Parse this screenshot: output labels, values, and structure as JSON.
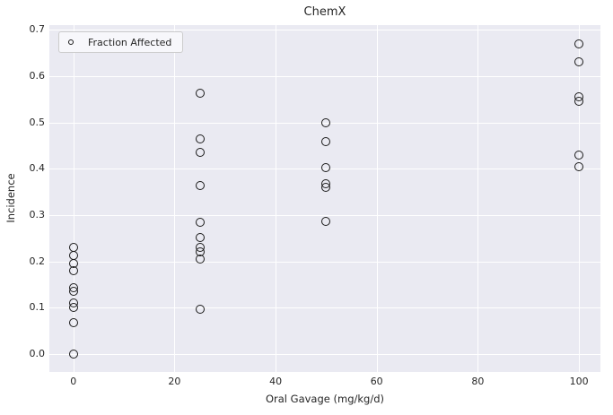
{
  "style": {
    "figure_bg": "#ffffff",
    "plot_bg": "#eaeaf2",
    "grid_color": "#ffffff",
    "text_color": "#262626",
    "marker_edge_color": "#1a1a1a"
  },
  "legend": {
    "label": "Fraction Affected",
    "marker_icon": "open-circle"
  },
  "chart_data": {
    "type": "scatter",
    "title": "ChemX",
    "xlabel": "Oral Gavage (mg/kg/d)",
    "ylabel": "Incidence",
    "legend_entries": [
      "Fraction Affected"
    ],
    "legend_position": "upper left",
    "grid": true,
    "marker": "open-circle",
    "xlim": [
      -4.75,
      104.25
    ],
    "ylim": [
      -0.0387,
      0.71
    ],
    "xticks": [
      0,
      20,
      40,
      60,
      80,
      100
    ],
    "yticks": [
      0.0,
      0.1,
      0.2,
      0.3,
      0.4,
      0.5,
      0.6,
      0.7
    ],
    "series": [
      {
        "name": "Fraction Affected",
        "points": [
          [
            0,
            0.23
          ],
          [
            0,
            0.212
          ],
          [
            0,
            0.196
          ],
          [
            0,
            0.18
          ],
          [
            0,
            0.144
          ],
          [
            0,
            0.135
          ],
          [
            0,
            0.11
          ],
          [
            0,
            0.101
          ],
          [
            0,
            0.068
          ],
          [
            0,
            0.0
          ],
          [
            25,
            0.563
          ],
          [
            25,
            0.464
          ],
          [
            25,
            0.435
          ],
          [
            25,
            0.364
          ],
          [
            25,
            0.284
          ],
          [
            25,
            0.251
          ],
          [
            25,
            0.23
          ],
          [
            25,
            0.221
          ],
          [
            25,
            0.206
          ],
          [
            25,
            0.097
          ],
          [
            50,
            0.5
          ],
          [
            50,
            0.458
          ],
          [
            50,
            0.402
          ],
          [
            50,
            0.367
          ],
          [
            50,
            0.359
          ],
          [
            50,
            0.287
          ],
          [
            100,
            0.67
          ],
          [
            100,
            0.63
          ],
          [
            100,
            0.555
          ],
          [
            100,
            0.545
          ],
          [
            100,
            0.429
          ],
          [
            100,
            0.404
          ]
        ]
      }
    ]
  }
}
